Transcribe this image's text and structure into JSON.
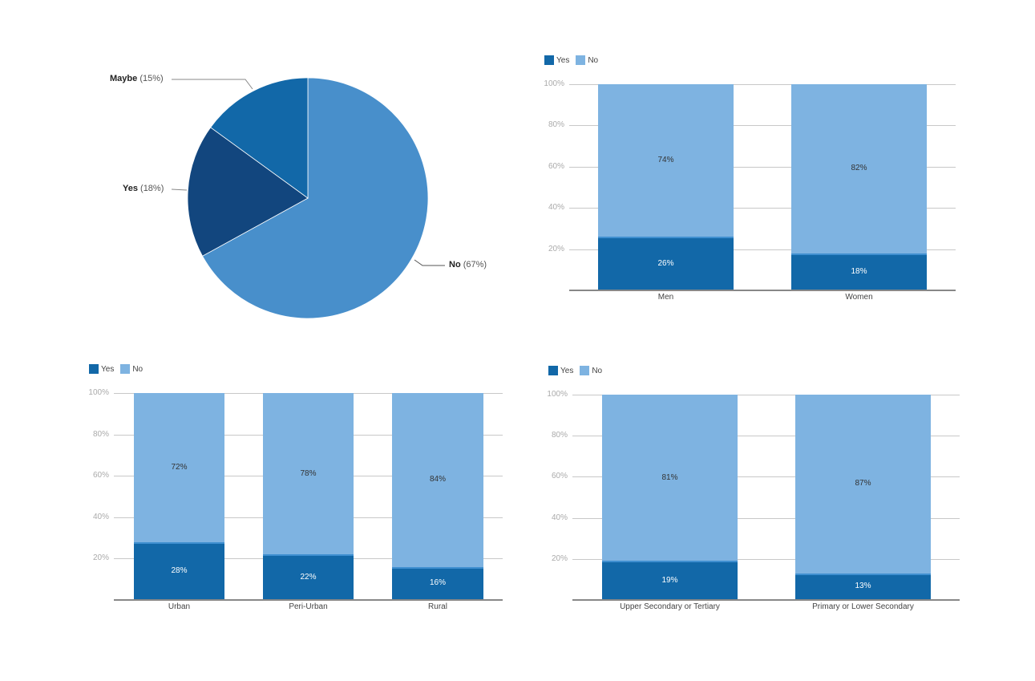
{
  "colors": {
    "yes": "#1268a8",
    "no": "#7eb3e1",
    "pie_no": "#488fcb",
    "pie_yes": "#12467e",
    "pie_maybe": "#1268a8"
  },
  "chart_data": [
    {
      "type": "pie",
      "title": "",
      "slices": [
        {
          "label": "No",
          "value": 67,
          "display": "(67%)"
        },
        {
          "label": "Yes",
          "value": 18,
          "display": "(18%)"
        },
        {
          "label": "Maybe",
          "value": 15,
          "display": "(15%)"
        }
      ]
    },
    {
      "type": "bar",
      "stacked": true,
      "categories": [
        "Men",
        "Women"
      ],
      "series": [
        {
          "name": "Yes",
          "values": [
            26,
            18
          ]
        },
        {
          "name": "No",
          "values": [
            74,
            82
          ]
        }
      ],
      "labels": {
        "yes": [
          "26%",
          "18%"
        ],
        "no": [
          "74%",
          "82%"
        ]
      },
      "legend": [
        "Yes",
        "No"
      ],
      "yticks": [
        "100%",
        "80%",
        "60%",
        "40%",
        "20%"
      ],
      "ylim": [
        0,
        100
      ],
      "xlabel": "",
      "ylabel": ""
    },
    {
      "type": "bar",
      "stacked": true,
      "categories": [
        "Urban",
        "Peri-Urban",
        "Rural"
      ],
      "series": [
        {
          "name": "Yes",
          "values": [
            28,
            22,
            16
          ]
        },
        {
          "name": "No",
          "values": [
            72,
            78,
            84
          ]
        }
      ],
      "labels": {
        "yes": [
          "28%",
          "22%",
          "16%"
        ],
        "no": [
          "72%",
          "78%",
          "84%"
        ]
      },
      "legend": [
        "Yes",
        "No"
      ],
      "yticks": [
        "100%",
        "80%",
        "60%",
        "40%",
        "20%"
      ],
      "ylim": [
        0,
        100
      ],
      "xlabel": "",
      "ylabel": ""
    },
    {
      "type": "bar",
      "stacked": true,
      "categories": [
        "Upper Secondary or Tertiary",
        "Primary or Lower Secondary"
      ],
      "series": [
        {
          "name": "Yes",
          "values": [
            19,
            13
          ]
        },
        {
          "name": "No",
          "values": [
            81,
            87
          ]
        }
      ],
      "labels": {
        "yes": [
          "19%",
          "13%"
        ],
        "no": [
          "81%",
          "87%"
        ]
      },
      "legend": [
        "Yes",
        "No"
      ],
      "yticks": [
        "100%",
        "80%",
        "60%",
        "40%",
        "20%"
      ],
      "ylim": [
        0,
        100
      ],
      "xlabel": "",
      "ylabel": ""
    }
  ]
}
